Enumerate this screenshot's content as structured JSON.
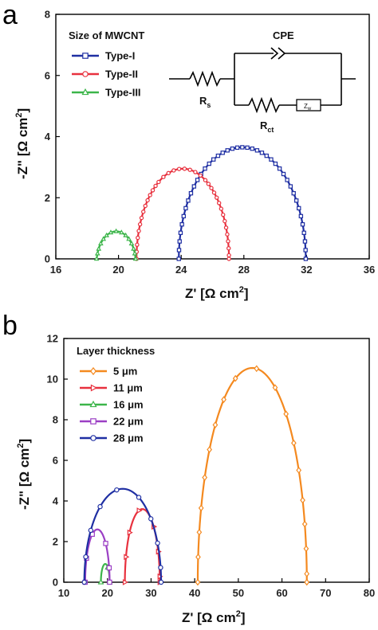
{
  "panels": [
    {
      "letter": "a",
      "legend_title": "Size of MWCNT",
      "xlabel_main": "Z' [Ω cm",
      "xlabel_sup": "2",
      "xlabel_end": "]",
      "ylabel_main": "-Z\" [Ω cm",
      "ylabel_sup": "2",
      "ylabel_end": "]",
      "circuit": {
        "cpe": "CPE",
        "rs": "R",
        "rs_sub": "s",
        "rct": "R",
        "rct_sub": "ct",
        "zw": "Z",
        "zw_sub": "w"
      }
    },
    {
      "letter": "b",
      "legend_title": "Layer thickness",
      "xlabel_main": "Z' [Ω cm",
      "xlabel_sup": "2",
      "xlabel_end": "]",
      "ylabel_main": "-Z\" [Ω cm",
      "ylabel_sup": "2",
      "ylabel_end": "]"
    }
  ],
  "chart_data": [
    {
      "type": "scatter",
      "title": "",
      "xlabel": "Z' [Ω cm2]",
      "ylabel": "-Z\" [Ω cm2]",
      "xlim": [
        16,
        36
      ],
      "ylim": [
        0,
        8
      ],
      "xticks": [
        16,
        20,
        24,
        28,
        32,
        36
      ],
      "yticks": [
        0,
        2,
        4,
        6,
        8
      ],
      "legend_title": "Size of MWCNT",
      "legend_position": "top-left",
      "series": [
        {
          "name": "Type-I",
          "color": "#1f2fa3",
          "marker": "square",
          "center": 27.9,
          "radius": 4.05,
          "peak": 3.65,
          "offset_y": 0
        },
        {
          "name": "Type-II",
          "color": "#e8313e",
          "marker": "circle",
          "center": 24.1,
          "radius": 2.95,
          "peak": 2.95,
          "offset_y": 0
        },
        {
          "name": "Type-III",
          "color": "#3cb54a",
          "marker": "triangle",
          "center": 19.85,
          "radius": 1.25,
          "peak": 0.9,
          "offset_y": -0.15
        }
      ]
    },
    {
      "type": "scatter",
      "title": "",
      "xlabel": "Z' [Ω cm2]",
      "ylabel": "-Z\" [Ω cm2]",
      "xlim": [
        10,
        80
      ],
      "ylim": [
        0,
        12
      ],
      "xticks": [
        10,
        20,
        30,
        40,
        50,
        60,
        70,
        80
      ],
      "yticks": [
        0,
        2,
        4,
        6,
        8,
        10,
        12
      ],
      "legend_title": "Layer thickness",
      "legend_position": "top-left",
      "series": [
        {
          "name": "5 μm",
          "color": "#f4891f",
          "marker": "diamond",
          "center": 53.2,
          "radius": 12.5,
          "peak": 10.55
        },
        {
          "name": "11 μm",
          "color": "#e8313e",
          "marker": "triangle-right",
          "center": 28.0,
          "radius": 4.0,
          "peak": 3.6
        },
        {
          "name": "16 μm",
          "color": "#3cb54a",
          "marker": "triangle",
          "center": 19.5,
          "radius": 1.0,
          "peak": 0.9
        },
        {
          "name": "22 μm",
          "color": "#9b3fc4",
          "marker": "square",
          "center": 17.7,
          "radius": 2.8,
          "peak": 2.6
        },
        {
          "name": "28 μm",
          "color": "#1f2fa3",
          "marker": "circle",
          "center": 23.5,
          "radius": 8.8,
          "peak": 4.6
        }
      ]
    }
  ]
}
